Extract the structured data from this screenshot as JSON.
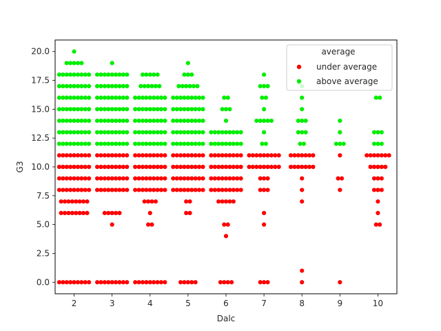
{
  "chart_data": {
    "type": "scatter",
    "subtype": "swarm",
    "title": "",
    "xlabel": "Dalc",
    "ylabel": "G3",
    "x_categories": [
      "2",
      "3",
      "4",
      "5",
      "6",
      "7",
      "8",
      "9",
      "10"
    ],
    "ylim": [
      -1,
      21
    ],
    "y_ticks": [
      0.0,
      2.5,
      5.0,
      7.5,
      10.0,
      12.5,
      15.0,
      17.5,
      20.0
    ],
    "y_tick_labels": [
      "0.0",
      "2.5",
      "5.0",
      "7.5",
      "10.0",
      "12.5",
      "15.0",
      "17.5",
      "20.0"
    ],
    "grid": false,
    "legend": {
      "title": "average",
      "placement": "top-right",
      "entries": [
        "under average",
        "above average"
      ]
    },
    "colors": {
      "under average": "#ff0000",
      "above average": "#00ee00"
    },
    "series": [
      {
        "name": "under average",
        "color": "#ff0000",
        "counts": {
          "2": {
            "0": 9,
            "6": 8,
            "7": 8,
            "8": 9,
            "9": 9,
            "10": 9,
            "11": 9
          },
          "3": {
            "0": 9,
            "5": 1,
            "6": 5,
            "8": 9,
            "9": 9,
            "10": 9,
            "11": 9
          },
          "4": {
            "0": 9,
            "5": 2,
            "6": 1,
            "7": 4,
            "8": 9,
            "9": 9,
            "10": 9,
            "11": 9
          },
          "5": {
            "0": 5,
            "6": 2,
            "7": 2,
            "8": 9,
            "9": 9,
            "10": 9,
            "11": 9
          },
          "6": {
            "0": 4,
            "4": 1,
            "5": 2,
            "7": 5,
            "8": 9,
            "9": 9,
            "10": 9,
            "11": 9
          },
          "7": {
            "0": 3,
            "5": 1,
            "6": 1,
            "8": 3,
            "9": 3,
            "10": 9,
            "11": 9
          },
          "8": {
            "0": 1,
            "1": 1,
            "7": 1,
            "8": 1,
            "9": 1,
            "10": 7,
            "11": 7
          },
          "9": {
            "0": 1,
            "8": 1,
            "9": 2,
            "11": 1
          },
          "10": {
            "5": 2,
            "6": 1,
            "7": 1,
            "8": 3,
            "9": 3,
            "10": 5,
            "11": 7
          }
        }
      },
      {
        "name": "above average",
        "color": "#00ee00",
        "counts": {
          "2": {
            "12": 9,
            "13": 9,
            "14": 9,
            "15": 9,
            "16": 9,
            "17": 9,
            "18": 9,
            "19": 5,
            "20": 1
          },
          "3": {
            "12": 9,
            "13": 9,
            "14": 9,
            "15": 9,
            "16": 9,
            "17": 9,
            "18": 9,
            "19": 1
          },
          "4": {
            "12": 9,
            "13": 9,
            "14": 9,
            "15": 9,
            "16": 9,
            "17": 6,
            "18": 5
          },
          "5": {
            "12": 9,
            "13": 9,
            "14": 9,
            "15": 9,
            "16": 9,
            "17": 6,
            "18": 3,
            "19": 1
          },
          "6": {
            "12": 9,
            "13": 9,
            "14": 1,
            "15": 3,
            "16": 2
          },
          "7": {
            "12": 2,
            "13": 1,
            "14": 5,
            "15": 1,
            "16": 2,
            "17": 3,
            "18": 1
          },
          "8": {
            "12": 2,
            "13": 3,
            "14": 3,
            "15": 1,
            "16": 1,
            "17": 1
          },
          "9": {
            "12": 3,
            "13": 1,
            "14": 1
          },
          "10": {
            "12": 3,
            "13": 3,
            "16": 2
          }
        }
      }
    ]
  }
}
